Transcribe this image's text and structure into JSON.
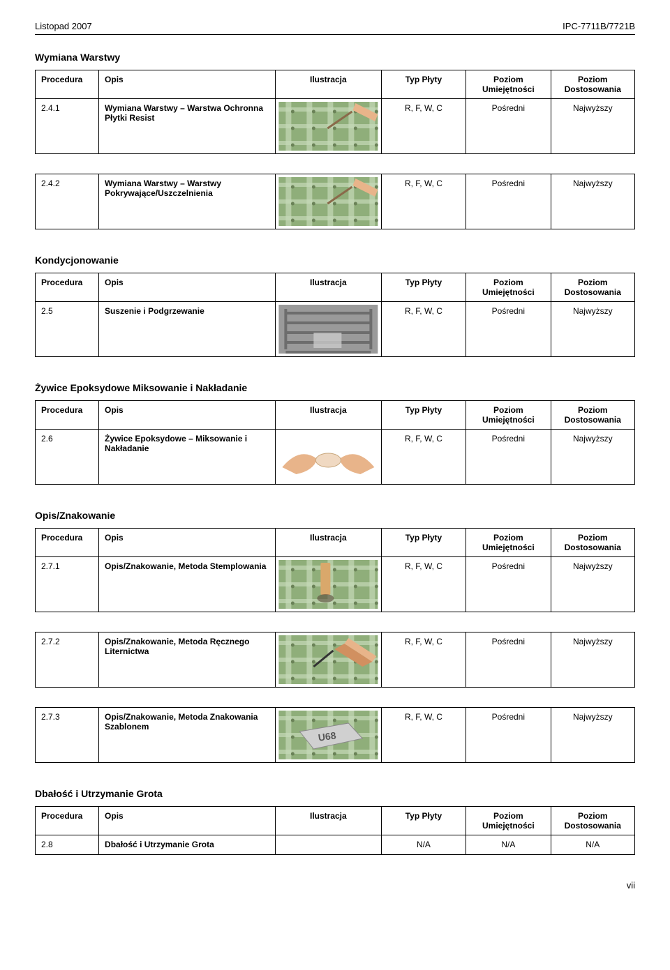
{
  "header": {
    "left": "Listopad 2007",
    "right": "IPC-7711B/7721B"
  },
  "columns": {
    "proc": "Procedura",
    "opis": "Opis",
    "ilu": "Ilustracja",
    "typ": "Typ Płyty",
    "umi": "Poziom Umiejętności",
    "dos": "Poziom Dostosowania"
  },
  "sections": [
    {
      "title": "Wymiana Warstwy",
      "rows": [
        {
          "proc": "2.4.1",
          "opis": "Wymiana Warstwy – Warstwa Ochronna Płytki Resist",
          "typ": "R, F, W, C",
          "umi": "Pośredni",
          "dos": "Najwyższy",
          "ilu": "pcb-green-grid"
        },
        {
          "proc": "2.4.2",
          "opis": "Wymiana Warstwy – Warstwy Pokrywające/Uszczelnienia",
          "typ": "R, F, W, C",
          "umi": "Pośredni",
          "dos": "Najwyższy",
          "ilu": "pcb-green-grid"
        }
      ]
    },
    {
      "title": "Kondycjonowanie",
      "rows": [
        {
          "proc": "2.5",
          "opis": "Suszenie i Podgrzewanie",
          "typ": "R, F, W, C",
          "umi": "Pośredni",
          "dos": "Najwyższy",
          "ilu": "gray-shelves"
        }
      ]
    },
    {
      "title": "Żywice Epoksydowe Miksowanie i Nakładanie",
      "rows": [
        {
          "proc": "2.6",
          "opis": "Żywice Epoksydowe – Miksowanie i Nakładanie",
          "typ": "R, F, W, C",
          "umi": "Pośredni",
          "dos": "Najwyższy",
          "ilu": "hands-epoxy"
        }
      ]
    },
    {
      "title": "Opis/Znakowanie",
      "rows": [
        {
          "proc": "2.7.1",
          "opis": "Opis/Znakowanie, Metoda Stemplowania",
          "typ": "R, F, W, C",
          "umi": "Pośredni",
          "dos": "Najwyższy",
          "ilu": "pcb-stamp"
        },
        {
          "proc": "2.7.2",
          "opis": "Opis/Znakowanie, Metoda Ręcznego Liternictwa",
          "typ": "R, F, W, C",
          "umi": "Pośredni",
          "dos": "Najwyższy",
          "ilu": "pcb-pen"
        },
        {
          "proc": "2.7.3",
          "opis": "Opis/Znakowanie, Metoda Znakowania Szablonem",
          "typ": "R, F, W, C",
          "umi": "Pośredni",
          "dos": "Najwyższy",
          "ilu": "pcb-stencil"
        }
      ]
    },
    {
      "title": "Dbałość i Utrzymanie Grota",
      "rows": [
        {
          "proc": "2.8",
          "opis": "Dbałość i Utrzymanie Grota",
          "typ": "N/A",
          "umi": "N/A",
          "dos": "N/A",
          "ilu": "none",
          "no_ilu": true
        }
      ]
    }
  ],
  "illustrations": {
    "pcb-green-grid": {
      "bg": "#8fae7a",
      "grid": "#c5d9b8",
      "accent": "#d9a86b",
      "type": "grid"
    },
    "gray-shelves": {
      "bg": "#9a9a9a",
      "grid": "#6d6d6d",
      "accent": "#c9c9c9",
      "type": "shelves"
    },
    "hands-epoxy": {
      "bg": "#ffffff",
      "skin": "#e8b48a",
      "accent": "#f0d9c2",
      "type": "hands"
    },
    "pcb-stamp": {
      "bg": "#8fae7a",
      "grid": "#c5d9b8",
      "accent": "#d9a86b",
      "type": "stamp"
    },
    "pcb-pen": {
      "bg": "#8fae7a",
      "grid": "#c5d9b8",
      "accent": "#e8b48a",
      "type": "pen"
    },
    "pcb-stencil": {
      "bg": "#8fae7a",
      "grid": "#c5d9b8",
      "accent": "#d0d0d0",
      "type": "stencil",
      "label": "U68"
    }
  },
  "footer": "vii"
}
